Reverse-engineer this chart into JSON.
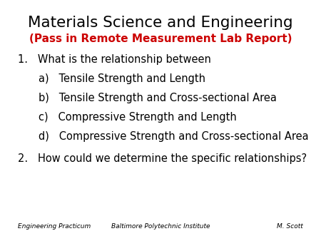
{
  "title": "Materials Science and Engineering",
  "subtitle": "(Pass in Remote Measurement Lab Report)",
  "subtitle_color": "#cc0000",
  "question1": "1.   What is the relationship between",
  "items": [
    "a)   Tensile Strength and Length",
    "b)   Tensile Strength and Cross-sectional Area",
    "c)   Compressive Strength and Length",
    "d)   Compressive Strength and Cross-sectional Area"
  ],
  "question2": "2.   How could we determine the specific relationships?",
  "footer_left": "Engineering Practicum",
  "footer_center": "Baltimore Polytechnic Institute",
  "footer_right": "M. Scott",
  "bg_color": "#ffffff",
  "text_color": "#000000",
  "title_fontsize": 15.5,
  "subtitle_fontsize": 11,
  "body_fontsize": 10.5,
  "footer_fontsize": 6.5
}
